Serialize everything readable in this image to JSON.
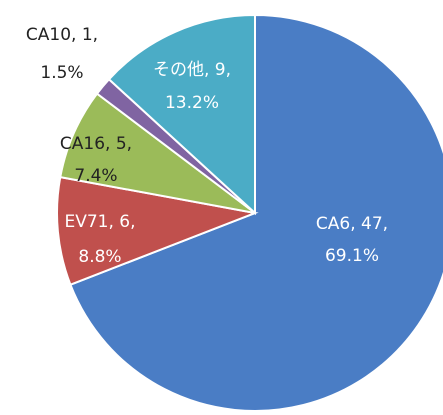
{
  "chart_data": {
    "type": "pie",
    "labels": [
      "CA6, 47,",
      "EV71, 6,",
      "CA16, 5,",
      "CA10, 1,",
      "その他, 9,"
    ],
    "values": [
      69.1,
      8.8,
      7.4,
      1.5,
      13.2
    ],
    "value_labels": [
      "69.1%",
      "8.8%",
      "7.4%",
      "1.5%",
      "13.2%"
    ],
    "colors": [
      "#4a7dc5",
      "#c0504d",
      "#9bbb59",
      "#8064a2",
      "#4bacc6"
    ]
  }
}
